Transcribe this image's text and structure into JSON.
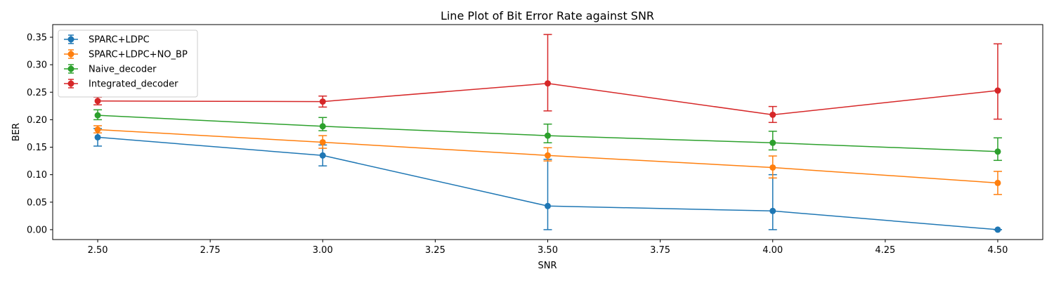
{
  "chart_data": {
    "type": "line",
    "title": "Line Plot of Bit Error Rate against SNR",
    "xlabel": "SNR",
    "ylabel": "BER",
    "x": [
      2.5,
      3.0,
      3.5,
      4.0,
      4.5
    ],
    "xlim": [
      2.4,
      4.6
    ],
    "ylim": [
      -0.018,
      0.373
    ],
    "xticks": [
      2.5,
      2.75,
      3.0,
      3.25,
      3.5,
      3.75,
      4.0,
      4.25,
      4.5
    ],
    "xtick_labels": [
      "2.50",
      "2.75",
      "3.00",
      "3.25",
      "3.50",
      "3.75",
      "4.00",
      "4.25",
      "4.50"
    ],
    "yticks": [
      0.0,
      0.05,
      0.1,
      0.15,
      0.2,
      0.25,
      0.3,
      0.35
    ],
    "ytick_labels": [
      "0.00",
      "0.05",
      "0.10",
      "0.15",
      "0.20",
      "0.25",
      "0.30",
      "0.35"
    ],
    "grid": false,
    "legend_position": "top-left",
    "series": [
      {
        "name": "SPARC+LDPC",
        "color": "#1f77b4",
        "values": [
          0.168,
          0.135,
          0.043,
          0.034,
          0.0
        ],
        "err_low": [
          0.152,
          0.116,
          0.0,
          0.0,
          0.0
        ],
        "err_high": [
          0.184,
          0.154,
          0.128,
          0.1,
          0.0
        ]
      },
      {
        "name": "SPARC+LDPC+NO_BP",
        "color": "#ff7f0e",
        "values": [
          0.182,
          0.159,
          0.135,
          0.113,
          0.085
        ],
        "err_low": [
          0.176,
          0.148,
          0.125,
          0.094,
          0.064
        ],
        "err_high": [
          0.189,
          0.171,
          0.149,
          0.134,
          0.106
        ]
      },
      {
        "name": "Naive_decoder",
        "color": "#2ca02c",
        "values": [
          0.208,
          0.188,
          0.171,
          0.158,
          0.142
        ],
        "err_low": [
          0.2,
          0.18,
          0.158,
          0.145,
          0.126
        ],
        "err_high": [
          0.218,
          0.204,
          0.192,
          0.179,
          0.167
        ]
      },
      {
        "name": "Integrated_decoder",
        "color": "#d62728",
        "values": [
          0.234,
          0.233,
          0.266,
          0.209,
          0.253
        ],
        "err_low": [
          0.227,
          0.223,
          0.216,
          0.195,
          0.201
        ],
        "err_high": [
          0.241,
          0.243,
          0.355,
          0.224,
          0.338
        ]
      }
    ]
  }
}
